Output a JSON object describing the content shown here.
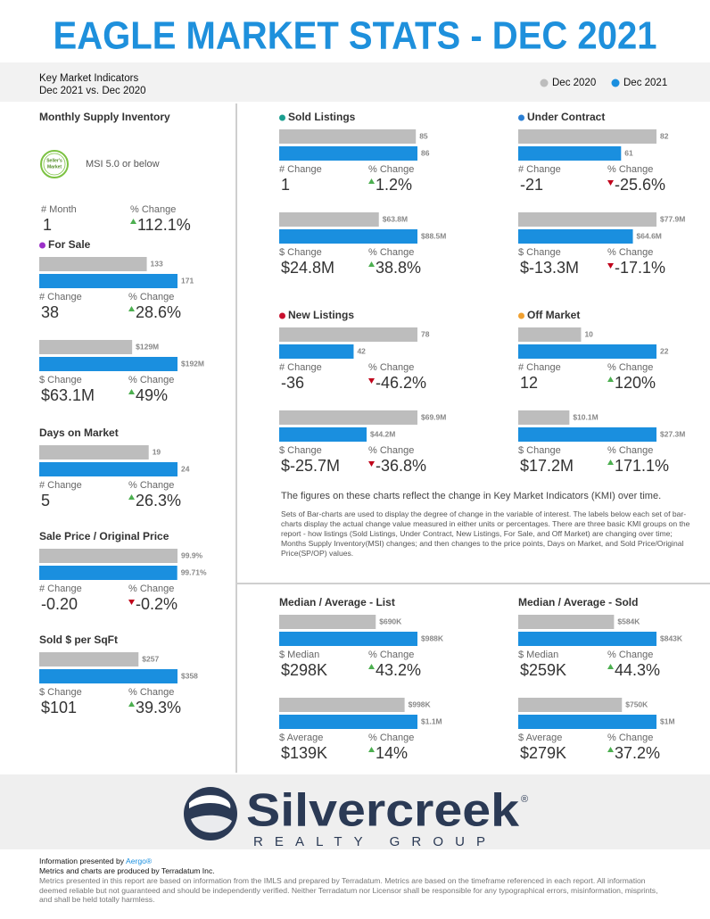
{
  "header": {
    "title": "EAGLE MARKET STATS - DEC 2021",
    "subtitle_lines": [
      "Key Market Indicators",
      "Dec 2021 vs. Dec 2020"
    ],
    "legend": [
      {
        "name": "Dec 2020",
        "color": "#bdbdbd"
      },
      {
        "name": "Dec 2021",
        "color": "#1a8fdf"
      }
    ]
  },
  "msi": {
    "title": "Monthly Supply Inventory",
    "badge": [
      "Seller's",
      "Market"
    ],
    "note": "MSI 5.0 or below",
    "stats": [
      {
        "label": "# Month",
        "value": "1"
      },
      {
        "label": "% Change",
        "value": "112.1%"
      }
    ]
  },
  "sections": [
    {
      "title": "For Sale",
      "dot": "#9b30c8",
      "groups": [
        {
          "values": [
            133,
            171
          ],
          "stats": [
            {
              "label": "# Change",
              "value": "38"
            },
            {
              "label": "% Change",
              "value": "28.6%"
            }
          ]
        },
        {
          "values": [
            129000000,
            192000000
          ],
          "value_labels": [
            "$129M",
            "$192M"
          ],
          "stats": [
            {
              "label": "$ Change",
              "value": "$63.1M"
            },
            {
              "label": "% Change",
              "value": "49%"
            }
          ]
        }
      ]
    },
    {
      "title": "Days on Market",
      "groups": [
        {
          "values": [
            19,
            24
          ],
          "stats": [
            {
              "label": "# Change",
              "value": "5"
            },
            {
              "label": "% Change",
              "value": "26.3%"
            }
          ]
        }
      ]
    },
    {
      "title": "Sale Price / Original Price",
      "groups": [
        {
          "values": [
            99.9,
            99.71
          ],
          "value_labels": [
            "99.9%",
            "99.71%"
          ],
          "stats": [
            {
              "label": "# Change",
              "value": "-0.20"
            },
            {
              "label": "% Change",
              "value": "-0.2%"
            }
          ]
        }
      ]
    },
    {
      "title": "Sold $ per SqFt",
      "groups": [
        {
          "values": [
            257,
            358
          ],
          "value_labels": [
            "$257",
            "$358"
          ],
          "stats": [
            {
              "label": "$ Change",
              "value": "$101"
            },
            {
              "label": "% Change",
              "value": "39.3%"
            }
          ]
        }
      ]
    },
    {
      "title": "Sold Listings",
      "dot": "#1a9e8f",
      "groups": [
        {
          "values": [
            85,
            86
          ],
          "stats": [
            {
              "label": "# Change",
              "value": "1"
            },
            {
              "label": "% Change",
              "value": "1.2%"
            }
          ]
        },
        {
          "values": [
            63800000,
            88500000
          ],
          "value_labels": [
            "$63.8M",
            "$88.5M"
          ],
          "stats": [
            {
              "label": "$ Change",
              "value": "$24.8M"
            },
            {
              "label": "% Change",
              "value": "38.8%"
            }
          ]
        }
      ]
    },
    {
      "title": "Under Contract",
      "dot": "#2a7fd4",
      "groups": [
        {
          "values": [
            82,
            61
          ],
          "stats": [
            {
              "label": "# Change",
              "value": "-21"
            },
            {
              "label": "% Change",
              "value": "-25.6%"
            }
          ]
        },
        {
          "values": [
            77900000,
            64600000
          ],
          "value_labels": [
            "$77.9M",
            "$64.6M"
          ],
          "stats": [
            {
              "label": "$ Change",
              "value": "$-13.3M"
            },
            {
              "label": "% Change",
              "value": "-17.1%"
            }
          ]
        }
      ]
    },
    {
      "title": "New Listings",
      "dot": "#c8102e",
      "groups": [
        {
          "values": [
            78,
            42
          ],
          "stats": [
            {
              "label": "# Change",
              "value": "-36"
            },
            {
              "label": "% Change",
              "value": "-46.2%"
            }
          ]
        },
        {
          "values": [
            69900000,
            44200000
          ],
          "value_labels": [
            "$69.9M",
            "$44.2M"
          ],
          "stats": [
            {
              "label": "$ Change",
              "value": "$-25.7M"
            },
            {
              "label": "% Change",
              "value": "-36.8%"
            }
          ]
        }
      ]
    },
    {
      "title": "Off Market",
      "dot": "#f0a030",
      "groups": [
        {
          "values": [
            10,
            22
          ],
          "stats": [
            {
              "label": "# Change",
              "value": "12"
            },
            {
              "label": "% Change",
              "value": "120%"
            }
          ]
        },
        {
          "values": [
            10100000,
            27300000
          ],
          "value_labels": [
            "$10.1M",
            "$27.3M"
          ],
          "stats": [
            {
              "label": "$ Change",
              "value": "$17.2M"
            },
            {
              "label": "% Change",
              "value": "171.1%"
            }
          ]
        }
      ]
    },
    {
      "title": "Median / Average - List",
      "groups": [
        {
          "values": [
            690000,
            988000
          ],
          "value_labels": [
            "$690K",
            "$988K"
          ],
          "stats": [
            {
              "label": "$ Median",
              "value": "$298K"
            },
            {
              "label": "% Change",
              "value": "43.2%"
            }
          ]
        },
        {
          "values": [
            998000,
            1100000
          ],
          "value_labels": [
            "$998K",
            "$1.1M"
          ],
          "stats": [
            {
              "label": "$ Average",
              "value": "$139K"
            },
            {
              "label": "% Change",
              "value": "14%"
            }
          ]
        }
      ]
    },
    {
      "title": "Median / Average - Sold",
      "groups": [
        {
          "values": [
            584000,
            843000
          ],
          "value_labels": [
            "$584K",
            "$843K"
          ],
          "stats": [
            {
              "label": "$ Median",
              "value": "$259K"
            },
            {
              "label": "% Change",
              "value": "44.3%"
            }
          ]
        },
        {
          "values": [
            750000,
            1000000
          ],
          "value_labels": [
            "$750K",
            "$1M"
          ],
          "stats": [
            {
              "label": "$ Average",
              "value": "$279K"
            },
            {
              "label": "% Change",
              "value": "37.2%"
            }
          ]
        }
      ]
    }
  ],
  "description": {
    "lead": "The figures on these charts reflect the change in Key Market Indicators (KMI) over time.",
    "body": "Sets of Bar-charts are used to display the degree of change in the variable of interest. The labels below each set of bar-charts display the actual change value measured in either units or percentages. There are three basic KMI groups on the report - how listings (Sold Listings, Under Contract, New Listings, For Sale, and Off Market) are changing over time; Months Supply Inventory(MSI) changes; and then changes to the price points, Days on Market, and Sold Price/Original Price(SP/OP) values."
  },
  "footer": {
    "brand": "Silvercreek",
    "brand_mark": "®",
    "brand_sub": "REALTY GROUP",
    "presented_prefix": "Information presented by ",
    "presented_by": "Aergo®",
    "produced": "Metrics and charts are produced by Terradatum Inc.",
    "disclaimer": "Metrics presented in this report are based on information from the IMLS and prepared by Terradatum. Metrics are based on the timeframe referenced in each report. All information deemed reliable but not guaranteed and should be independently verified. Neither Terradatum nor Licensor shall be responsible for any typographical errors, misinformation, misprints, and shall be held totally harmless."
  }
}
